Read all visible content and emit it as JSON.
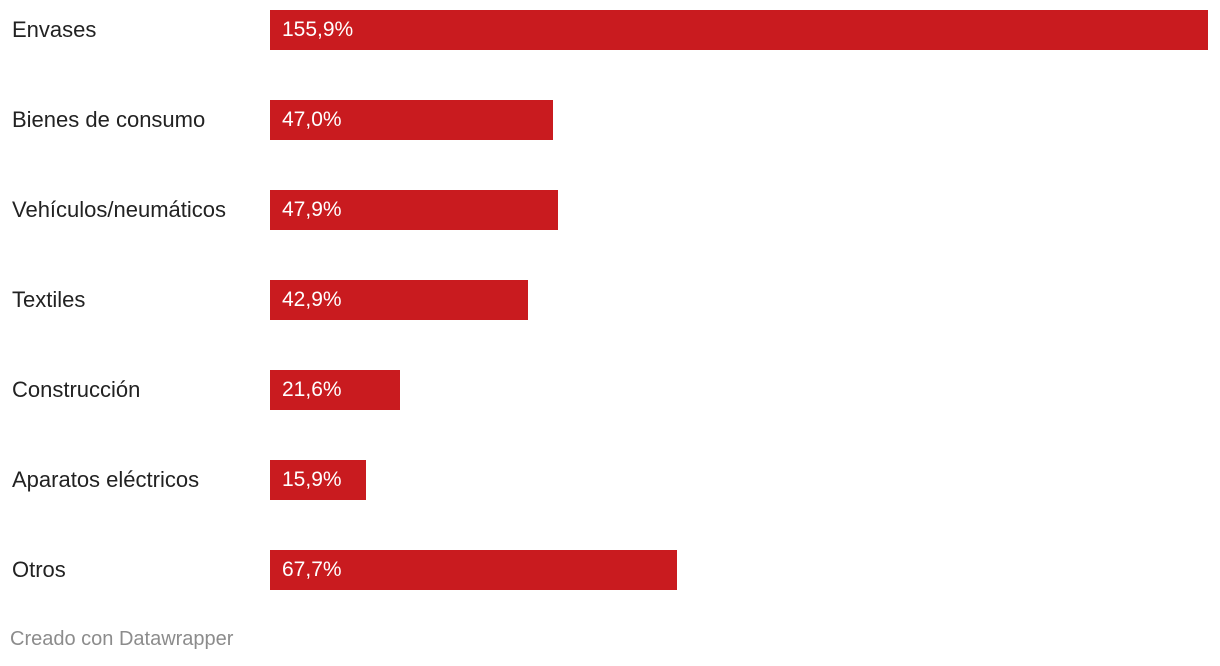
{
  "chart_data": {
    "type": "bar",
    "orientation": "horizontal",
    "categories": [
      "Envases",
      "Bienes de consumo",
      "Vehículos/neumáticos",
      "Textiles",
      "Construcción",
      "Aparatos eléctricos",
      "Otros"
    ],
    "values": [
      155.9,
      47.0,
      47.9,
      42.9,
      21.6,
      15.9,
      67.7
    ],
    "value_labels": [
      "155,9%",
      "47,0%",
      "47,9%",
      "42,9%",
      "21,6%",
      "15,9%",
      "67,7%"
    ],
    "xlim": [
      0,
      155.9
    ],
    "grid": false,
    "bar_color": "#c91b1f"
  },
  "footer": {
    "credit": "Creado con Datawrapper"
  }
}
